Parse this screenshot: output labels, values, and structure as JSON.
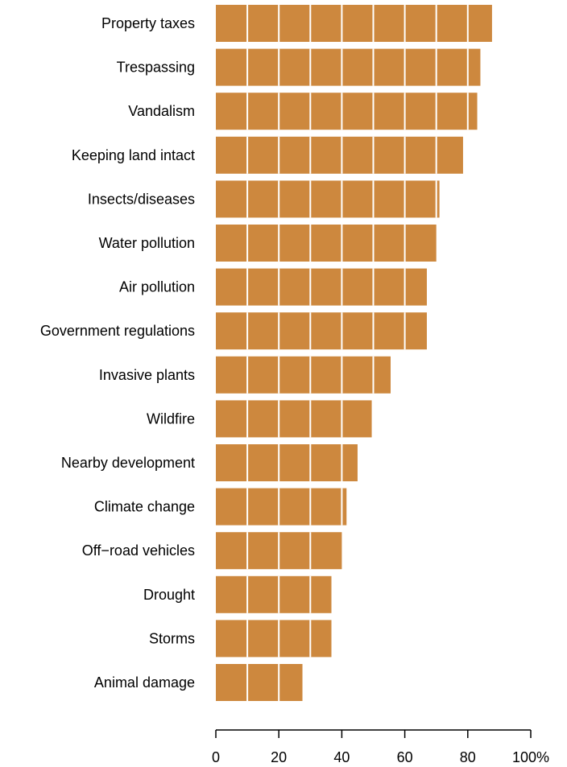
{
  "chart_data": {
    "type": "bar",
    "orientation": "horizontal",
    "categories": [
      "Property taxes",
      "Trespassing",
      "Vandalism",
      "Keeping land intact",
      "Insects/diseases",
      "Water pollution",
      "Air pollution",
      "Government regulations",
      "Invasive plants",
      "Wildfire",
      "Nearby development",
      "Climate change",
      "Off−road vehicles",
      "Drought",
      "Storms",
      "Animal damage"
    ],
    "values": [
      87.7,
      84,
      83,
      78.5,
      71,
      70,
      67,
      67,
      55.5,
      49.5,
      45,
      41.5,
      40,
      36.7,
      36.7,
      27.5
    ],
    "xlim": [
      0,
      100
    ],
    "x_ticks": [
      0,
      20,
      40,
      60,
      80,
      100
    ],
    "x_tick_labels": [
      "0",
      "20",
      "40",
      "60",
      "80",
      "100%"
    ],
    "gridlines_every": 10,
    "grid": "white vertical lines over bars",
    "bar_color": "#cd883e",
    "gridline_color": "#ffffff",
    "title": "",
    "xlabel": "",
    "ylabel": ""
  }
}
